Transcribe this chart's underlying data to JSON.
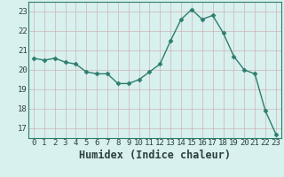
{
  "x": [
    0,
    1,
    2,
    3,
    4,
    5,
    6,
    7,
    8,
    9,
    10,
    11,
    12,
    13,
    14,
    15,
    16,
    17,
    18,
    19,
    20,
    21,
    22,
    23
  ],
  "y": [
    20.6,
    20.5,
    20.6,
    20.4,
    20.3,
    19.9,
    19.8,
    19.8,
    19.3,
    19.3,
    19.5,
    19.9,
    20.3,
    21.5,
    22.6,
    23.1,
    22.6,
    22.8,
    21.9,
    20.7,
    20.0,
    19.8,
    17.9,
    16.7
  ],
  "line_color": "#2d7d6e",
  "marker": "D",
  "marker_size": 2.5,
  "bg_color": "#d8f0ee",
  "grid_color": "#c8dedd",
  "axis_label": "Humidex (Indice chaleur)",
  "ylim": [
    16.5,
    23.5
  ],
  "xlim": [
    -0.5,
    23.5
  ],
  "yticks": [
    17,
    18,
    19,
    20,
    21,
    22,
    23
  ],
  "xticks": [
    0,
    1,
    2,
    3,
    4,
    5,
    6,
    7,
    8,
    9,
    10,
    11,
    12,
    13,
    14,
    15,
    16,
    17,
    18,
    19,
    20,
    21,
    22,
    23
  ],
  "tick_fontsize": 6.5,
  "label_fontsize": 8.5,
  "spine_color": "#2d7d6e"
}
